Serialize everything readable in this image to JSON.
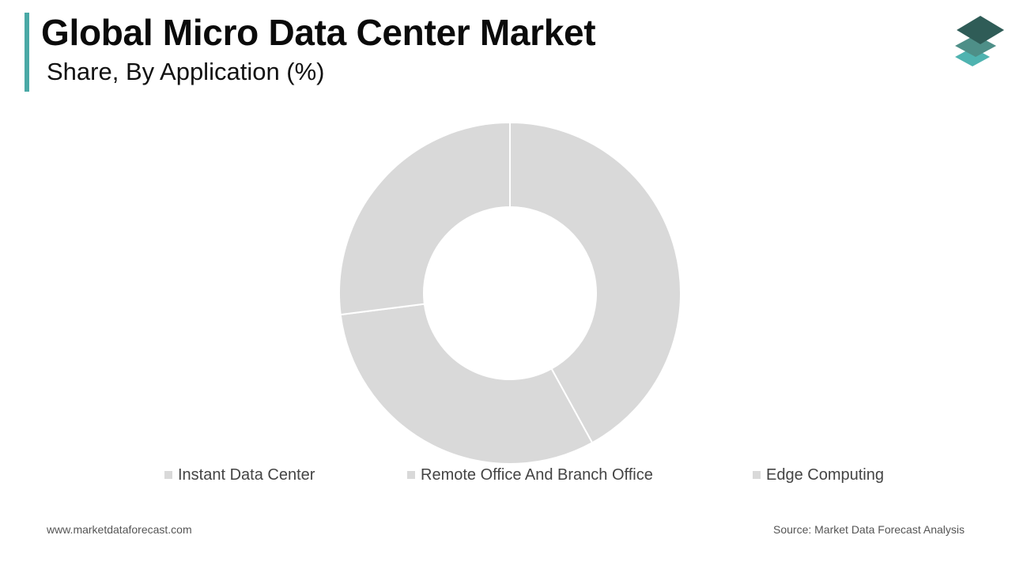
{
  "header": {
    "title": "Global Micro Data Center Market",
    "subtitle": "Share, By Application (%)",
    "accent_color": "#4aa9a6"
  },
  "logo": {
    "icon": "stacked-layers-logo",
    "colors": [
      "#2f5c57",
      "#4e8f88",
      "#4fb3b0"
    ]
  },
  "chart_data": {
    "type": "pie",
    "donut": true,
    "title": "Share, By Application (%)",
    "categories": [
      "Instant Data Center",
      "Remote Office And Branch Office",
      "Edge Computing"
    ],
    "values": [
      42,
      31,
      27
    ],
    "unit": "%",
    "colors": [
      "#d9d9d9",
      "#d9d9d9",
      "#d9d9d9"
    ],
    "legend_position": "bottom",
    "data_labels": false
  },
  "footer": {
    "website": "www.marketdataforecast.com",
    "source": "Source: Market Data Forecast Analysis"
  }
}
